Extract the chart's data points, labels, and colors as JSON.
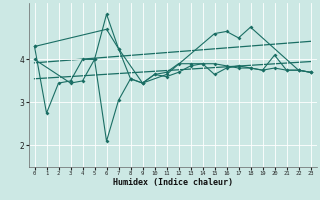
{
  "title": "",
  "xlabel": "Humidex (Indice chaleur)",
  "xlim": [
    -0.5,
    23.5
  ],
  "ylim": [
    1.5,
    5.3
  ],
  "yticks": [
    2,
    3,
    4
  ],
  "xticks": [
    0,
    1,
    2,
    3,
    4,
    5,
    6,
    7,
    8,
    9,
    10,
    11,
    12,
    13,
    14,
    15,
    16,
    17,
    18,
    19,
    20,
    21,
    22,
    23
  ],
  "bg_color": "#cce8e4",
  "line_color": "#1a6e64",
  "grid_color": "#b0d8d2",
  "line1": {
    "x": [
      0,
      1,
      2,
      3,
      4,
      5,
      6,
      7,
      8,
      9,
      10,
      11,
      12,
      13,
      14,
      15,
      16,
      17,
      18,
      19,
      20,
      21,
      22,
      23
    ],
    "y": [
      4.3,
      2.75,
      3.45,
      3.5,
      4.0,
      4.0,
      5.05,
      4.25,
      3.55,
      3.45,
      3.65,
      3.7,
      3.9,
      3.9,
      3.9,
      3.9,
      3.85,
      3.8,
      3.8,
      3.75,
      3.8,
      3.75,
      3.75,
      3.7
    ]
  },
  "line2": {
    "x": [
      0,
      1,
      2,
      3,
      4,
      5,
      6,
      7,
      8,
      9,
      10,
      11,
      12,
      13,
      14,
      15,
      16,
      17,
      18,
      19,
      20,
      21,
      22,
      23
    ],
    "y": [
      4.3,
      null,
      null,
      null,
      null,
      null,
      4.7,
      4.25,
      null,
      3.45,
      null,
      3.65,
      null,
      null,
      null,
      4.6,
      4.65,
      4.5,
      4.75,
      null,
      null,
      null,
      3.75,
      3.7
    ]
  },
  "line3": {
    "x": [
      0,
      3,
      4,
      5,
      6,
      7,
      8,
      9,
      10,
      11,
      12,
      13,
      14,
      15,
      16,
      17,
      18,
      19,
      20,
      21,
      22,
      23
    ],
    "y": [
      4.0,
      3.45,
      3.5,
      4.0,
      2.1,
      3.05,
      3.55,
      3.45,
      3.65,
      3.6,
      3.7,
      3.85,
      3.9,
      3.65,
      3.8,
      3.85,
      3.8,
      3.75,
      4.1,
      3.75,
      3.75,
      3.7
    ]
  },
  "line4_trend1": {
    "x": [
      0,
      23
    ],
    "y": [
      3.92,
      4.42
    ]
  },
  "line4_trend2": {
    "x": [
      0,
      23
    ],
    "y": [
      3.55,
      3.95
    ]
  }
}
